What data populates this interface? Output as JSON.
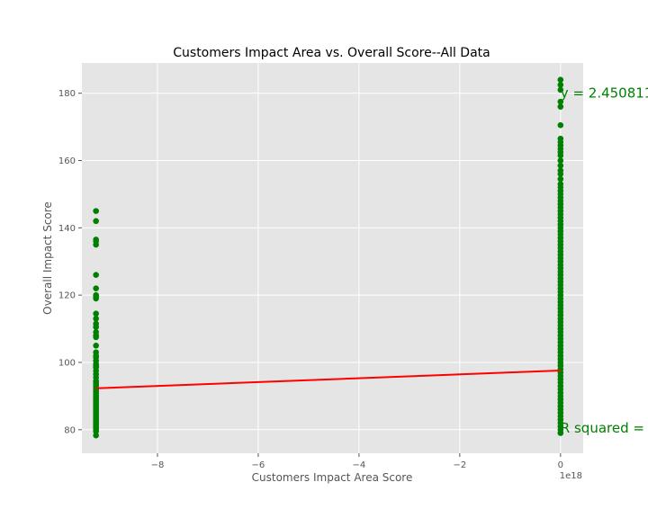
{
  "chart_data": {
    "type": "scatter",
    "title": "Customers Impact Area vs. Overall Score--All Data",
    "xlabel": "Customers Impact Area Score",
    "ylabel": "Overall Impact Score",
    "x_offset_text": "1e18",
    "xlim": [
      -9.5,
      0.45
    ],
    "ylim": [
      73,
      189
    ],
    "x_ticks": [
      -8,
      -6,
      -4,
      -2,
      0
    ],
    "x_tick_labels": [
      "−8",
      "−6",
      "−4",
      "−2",
      "0"
    ],
    "y_ticks": [
      80,
      100,
      120,
      140,
      160,
      180
    ],
    "y_tick_labels": [
      "80",
      "100",
      "120",
      "140",
      "160",
      "180"
    ],
    "grid": true,
    "colors": {
      "points": "#008000",
      "regression_line": "#ff0000",
      "plot_bg": "#e5e5e5",
      "grid": "#ffffff"
    },
    "series": [
      {
        "x": -9.22,
        "y": [
          145,
          142,
          136.5,
          136,
          135,
          126,
          122,
          120,
          119.5,
          119,
          114.5,
          113,
          111.5,
          110.5,
          109,
          108,
          107.5,
          105,
          103,
          102,
          101.5,
          100.5,
          99.5,
          99,
          98.5,
          97.5,
          96.5,
          95.5,
          94.5,
          94,
          93.5,
          93,
          92.5,
          92,
          91.5,
          91,
          90.5,
          90,
          89.5,
          89,
          88.5,
          88,
          87.5,
          87,
          86.5,
          86,
          85.5,
          85,
          84.5,
          84,
          83.5,
          83,
          82.5,
          82,
          81.5,
          81,
          80.5,
          80,
          79.5,
          78.3
        ]
      },
      {
        "x": 0,
        "y": [
          184,
          182.5,
          181,
          177.5,
          176,
          170.5,
          166.5,
          165.5,
          164.5,
          163.5,
          162.5,
          161.5,
          160,
          158.5,
          157,
          156,
          154.5,
          153,
          152,
          151,
          150,
          149,
          148,
          147,
          146,
          145,
          144,
          143,
          142,
          141,
          140,
          139,
          138,
          137,
          136,
          135,
          134,
          133,
          132,
          131,
          130,
          129,
          128,
          127,
          126,
          125,
          124,
          123,
          122,
          121,
          120,
          119,
          118,
          117,
          116,
          115,
          114,
          113,
          112,
          111,
          110,
          109,
          108,
          107,
          106,
          105,
          104,
          103,
          102,
          101,
          100,
          99,
          98,
          97,
          96,
          95,
          94,
          93,
          92,
          91,
          90,
          89,
          88,
          87,
          86,
          85,
          84,
          83,
          82,
          81,
          80,
          79
        ]
      }
    ],
    "regression_line": {
      "x": [
        -9.22,
        0
      ],
      "y": [
        92.3,
        97.6
      ]
    },
    "annotations": [
      {
        "text": "y = 2.450811",
        "x": 0,
        "y": 180
      },
      {
        "text": "R squared = ",
        "x": 0,
        "y": 80.5
      }
    ]
  }
}
